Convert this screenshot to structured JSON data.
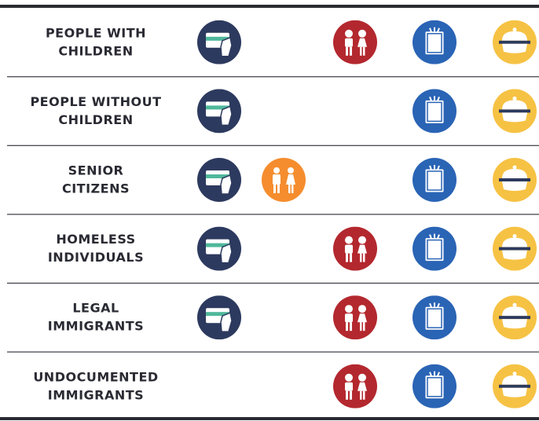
{
  "table": {
    "rows": [
      {
        "label": [
          "PEOPLE WITH",
          "CHILDREN"
        ]
      },
      {
        "label": [
          "PEOPLE WITHOUT",
          "CHILDREN"
        ]
      },
      {
        "label": [
          "SENIOR",
          "CITIZENS"
        ]
      },
      {
        "label": [
          "HOMELESS",
          "INDIVIDUALS"
        ]
      },
      {
        "label": [
          "LEGAL",
          "IMMIGRANTS"
        ]
      },
      {
        "label": [
          "UNDOCUMENTED",
          "IMMIGRANTS"
        ]
      }
    ]
  }
}
